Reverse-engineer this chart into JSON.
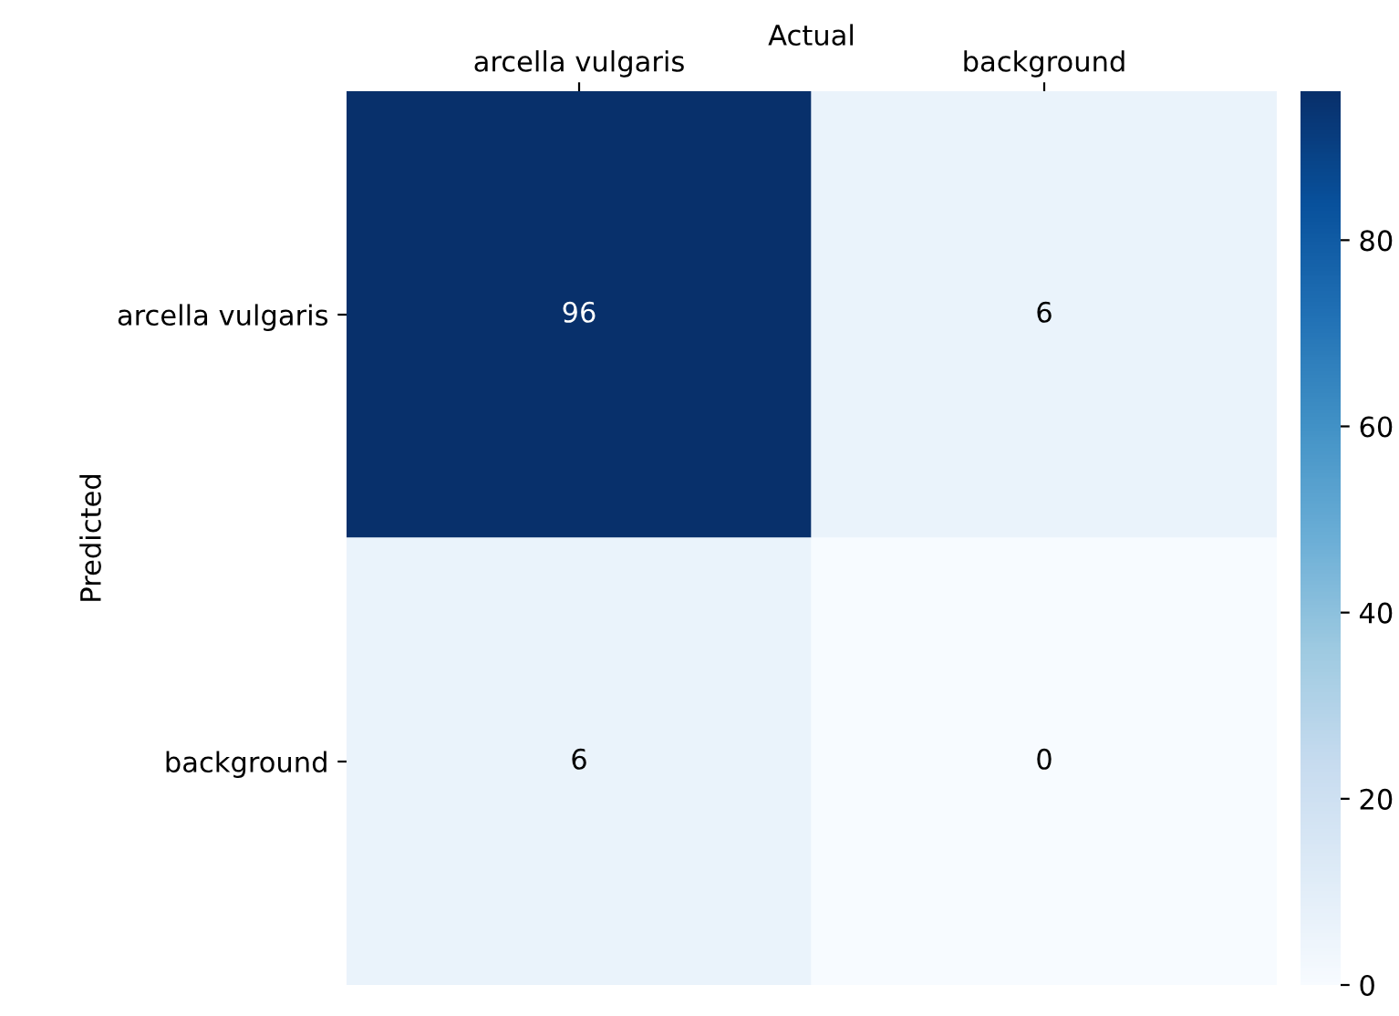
{
  "chart_data": {
    "type": "heatmap",
    "xlabel": "Actual",
    "ylabel": "Predicted",
    "categories": [
      "arcella vulgaris",
      "background"
    ],
    "y_categories": [
      "arcella vulgaris",
      "background"
    ],
    "cells": [
      [
        96,
        6
      ],
      [
        6,
        0
      ]
    ],
    "data_labels": true,
    "clim": [
      0,
      96
    ],
    "cticks": [
      0,
      20,
      40,
      60,
      80
    ]
  }
}
